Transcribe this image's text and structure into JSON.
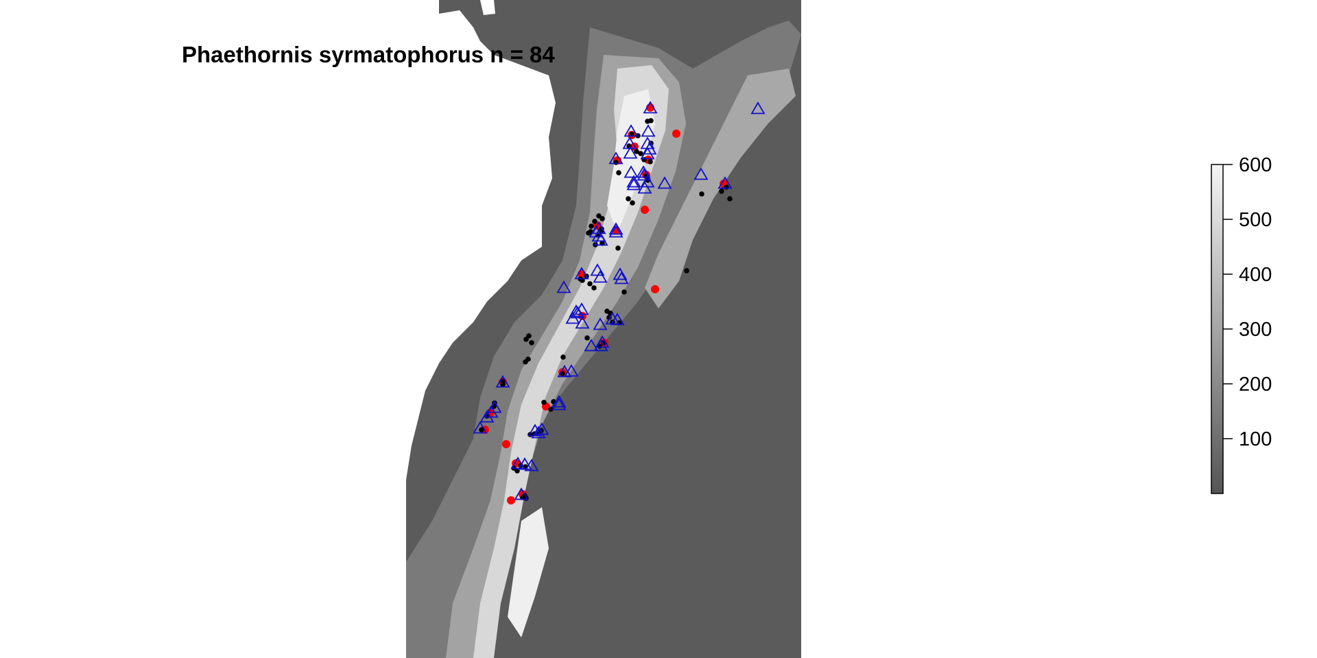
{
  "title": "Phaethornis syrmatophorus n = 84",
  "legend": {
    "tick_labels": [
      "100",
      "200",
      "300",
      "400",
      "500",
      "600"
    ],
    "tick_values": [
      100,
      200,
      300,
      400,
      500,
      600
    ],
    "range": [
      0,
      600
    ],
    "color_low": "#555555",
    "color_high": "#f5f5f5"
  },
  "colors": {
    "background_raster": "#5b5b5b",
    "triangle_stroke": "#1010c8",
    "red_point": "#ff0000",
    "black_point": "#000000",
    "no_data": "#ffffff"
  },
  "marker_types": [
    "red-dot-icon",
    "black-dot-icon",
    "blue-triangle-icon"
  ]
}
